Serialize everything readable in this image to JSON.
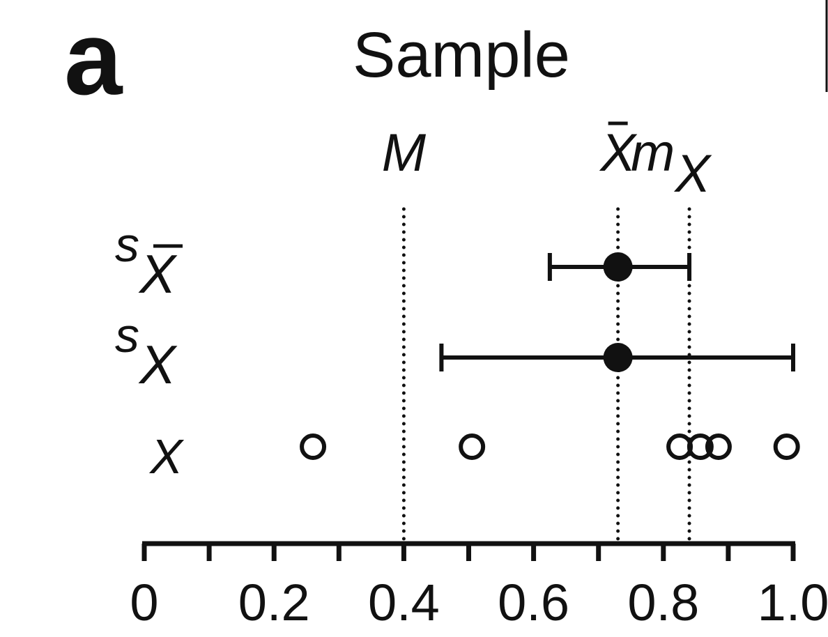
{
  "panel_label": "a",
  "chart_data": {
    "type": "scatter",
    "title": "Sample",
    "xlim": [
      0,
      1.0
    ],
    "x_ticks": [
      0,
      0.1,
      0.2,
      0.3,
      0.4,
      0.5,
      0.6,
      0.7,
      0.8,
      0.9,
      1.0
    ],
    "x_tick_labels": [
      {
        "value": 0,
        "label": "0"
      },
      {
        "value": 0.2,
        "label": "0.2"
      },
      {
        "value": 0.4,
        "label": "0.4"
      },
      {
        "value": 0.6,
        "label": "0.6"
      },
      {
        "value": 0.8,
        "label": "0.8"
      },
      {
        "value": 1.0,
        "label": "1.0"
      }
    ],
    "reference_lines": [
      {
        "label": "M",
        "subscript": "",
        "overbar": false,
        "value": 0.4
      },
      {
        "label": "X",
        "subscript": "",
        "overbar": true,
        "value": 0.73
      },
      {
        "label": "m",
        "subscript": "X",
        "overbar": false,
        "value": 0.84
      }
    ],
    "rows": [
      {
        "key": "sem",
        "label": "s",
        "subscript": "X",
        "subscript_overbar": true,
        "mean": 0.73,
        "err_low": 0.625,
        "err_high": 0.84
      },
      {
        "key": "sd",
        "label": "s",
        "subscript": "X",
        "subscript_overbar": false,
        "mean": 0.73,
        "err_low": 0.458,
        "err_high": 1.0
      },
      {
        "key": "obs",
        "label": "X",
        "subscript": "",
        "subscript_overbar": false,
        "points": [
          0.26,
          0.505,
          0.825,
          0.857,
          0.885,
          0.99
        ]
      }
    ],
    "grid": false,
    "legend": "none",
    "colors": {
      "ink": "#111111",
      "background": "#ffffff"
    }
  }
}
